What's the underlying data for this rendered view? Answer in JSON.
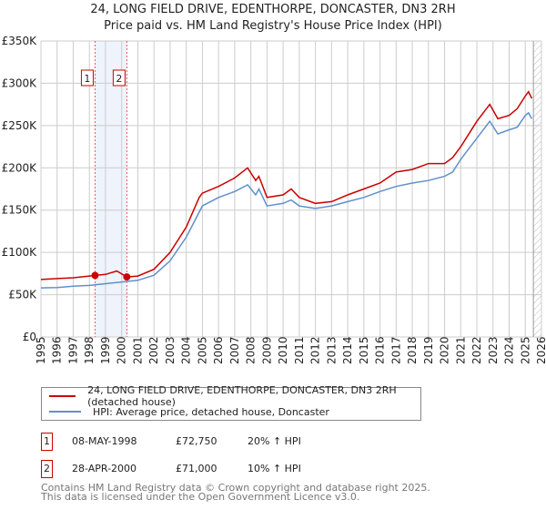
{
  "title_line1": "24, LONG FIELD DRIVE, EDENTHORPE, DONCASTER, DN3 2RH",
  "title_line2": "Price paid vs. HM Land Registry's House Price Index (HPI)",
  "colors": {
    "property": "#cc0000",
    "hpi": "#6090cc",
    "shade": "#eef3fc",
    "grid": "#cccccc"
  },
  "chart_data": {
    "type": "line",
    "xlim": [
      1995,
      2026
    ],
    "ylim": [
      0,
      350000
    ],
    "yticks": [
      0,
      50000,
      100000,
      150000,
      200000,
      250000,
      300000,
      350000
    ],
    "ytick_labels": [
      "£0",
      "£50K",
      "£100K",
      "£150K",
      "£200K",
      "£250K",
      "£300K",
      "£350K"
    ],
    "xticks": [
      "1995",
      "1996",
      "1997",
      "1998",
      "1999",
      "2000",
      "2001",
      "2002",
      "2003",
      "2004",
      "2005",
      "2006",
      "2007",
      "2008",
      "2009",
      "2010",
      "2011",
      "2012",
      "2013",
      "2014",
      "2015",
      "2016",
      "2017",
      "2018",
      "2019",
      "2020",
      "2021",
      "2022",
      "2023",
      "2024",
      "2025",
      "2026"
    ],
    "grid": true,
    "shaded_range": [
      1998.35,
      2000.32
    ],
    "hatched_from": 2025.5,
    "series": [
      {
        "name": "24, LONG FIELD DRIVE, EDENTHORPE, DONCASTER, DN3 2RH (detached house)",
        "x": [
          1995,
          1996,
          1997,
          1998,
          1998.35,
          1999,
          1999.7,
          2000.32,
          2001,
          2002,
          2003,
          2004,
          2004.8,
          2005,
          2006,
          2007,
          2007.8,
          2008.3,
          2008.5,
          2009,
          2010,
          2010.5,
          2011,
          2012,
          2013,
          2014,
          2015,
          2016,
          2017,
          2018,
          2019,
          2020,
          2020.5,
          2021,
          2022,
          2022.8,
          2023.3,
          2024,
          2024.5,
          2025,
          2025.2,
          2025.4
        ],
        "y": [
          68000,
          69000,
          70000,
          72000,
          72750,
          74000,
          78000,
          71000,
          72000,
          80000,
          100000,
          130000,
          165000,
          170000,
          178000,
          188000,
          200000,
          185000,
          190000,
          165000,
          168000,
          175000,
          165000,
          158000,
          160000,
          168000,
          175000,
          182000,
          195000,
          198000,
          205000,
          205000,
          212000,
          225000,
          255000,
          275000,
          258000,
          262000,
          270000,
          285000,
          290000,
          282000
        ]
      },
      {
        "name": "HPI: Average price, detached house, Doncaster",
        "x": [
          1995,
          1996,
          1997,
          1998,
          1999,
          2000,
          2001,
          2002,
          2003,
          2004,
          2005,
          2006,
          2007,
          2007.8,
          2008.3,
          2008.5,
          2009,
          2010,
          2010.5,
          2011,
          2012,
          2013,
          2014,
          2015,
          2016,
          2017,
          2018,
          2019,
          2020,
          2020.5,
          2021,
          2022,
          2022.8,
          2023.3,
          2024,
          2024.5,
          2025,
          2025.2,
          2025.4
        ],
        "y": [
          58000,
          58500,
          60000,
          61000,
          63000,
          65000,
          67000,
          73000,
          90000,
          118000,
          155000,
          165000,
          172000,
          180000,
          168000,
          175000,
          155000,
          158000,
          162000,
          155000,
          152000,
          155000,
          160000,
          165000,
          172000,
          178000,
          182000,
          185000,
          190000,
          195000,
          210000,
          235000,
          255000,
          240000,
          245000,
          248000,
          262000,
          265000,
          258000
        ]
      }
    ],
    "markers": [
      {
        "label": "1",
        "x": 1998.35,
        "y": 72750
      },
      {
        "label": "2",
        "x": 2000.32,
        "y": 71000
      }
    ]
  },
  "legend": {
    "property": "24, LONG FIELD DRIVE, EDENTHORPE, DONCASTER, DN3 2RH (detached house)",
    "hpi": "HPI: Average price, detached house, Doncaster"
  },
  "transactions": [
    {
      "num": "1",
      "date": "08-MAY-1998",
      "price": "£72,750",
      "hpi": "20% ↑ HPI"
    },
    {
      "num": "2",
      "date": "28-APR-2000",
      "price": "£71,000",
      "hpi": "10% ↑ HPI"
    }
  ],
  "footer_line1": "Contains HM Land Registry data © Crown copyright and database right 2025.",
  "footer_line2": "This data is licensed under the Open Government Licence v3.0."
}
